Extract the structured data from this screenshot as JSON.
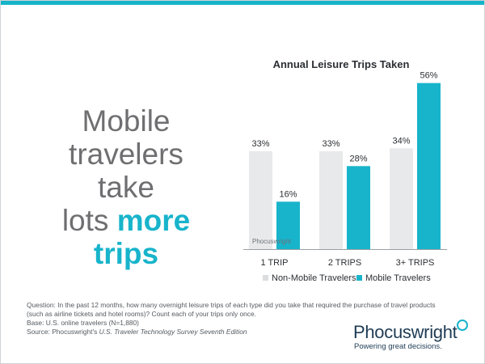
{
  "headline": {
    "line1": "Mobile",
    "line2": "travelers take",
    "line3_plain": "lots ",
    "line3_highlight": "more",
    "line4_highlight": "trips"
  },
  "chart_data": {
    "type": "bar",
    "title": "Annual Leisure Trips Taken",
    "categories": [
      "1 TRIP",
      "2 TRIPS",
      "3+ TRIPS"
    ],
    "series": [
      {
        "name": "Non-Mobile Travelers",
        "values": [
          33,
          33,
          34
        ],
        "labels": [
          "33%",
          "33%",
          "34%"
        ],
        "color": "#e8e9ea"
      },
      {
        "name": "Mobile Travelers",
        "values": [
          16,
          28,
          56
        ],
        "labels": [
          "16%",
          "28%",
          "56%"
        ],
        "color": "#18b4cb"
      }
    ],
    "ylim": [
      0,
      60
    ],
    "grid": false,
    "legend": "bottom",
    "watermark": "Phocuswright"
  },
  "notes": {
    "question_line1": "Question: In the past 12 months, how many overnight leisure trips of each type did you take that required the purchase of travel products",
    "question_line2": "(such as airline tickets and hotel rooms)? Count each of your trips only once.",
    "base": "Base: U.S. online travelers (N=1,880)",
    "source_prefix": "Source: Phocuswright's ",
    "source_title": "U.S. Traveler Technology Survey Seventh Edition"
  },
  "brand": {
    "name": "Phocuswright",
    "tagline": "Powering great decisions."
  },
  "colors": {
    "accent": "#18b4cb",
    "headline_gray": "#6f6f72",
    "brand_navy": "#1f3c55"
  }
}
